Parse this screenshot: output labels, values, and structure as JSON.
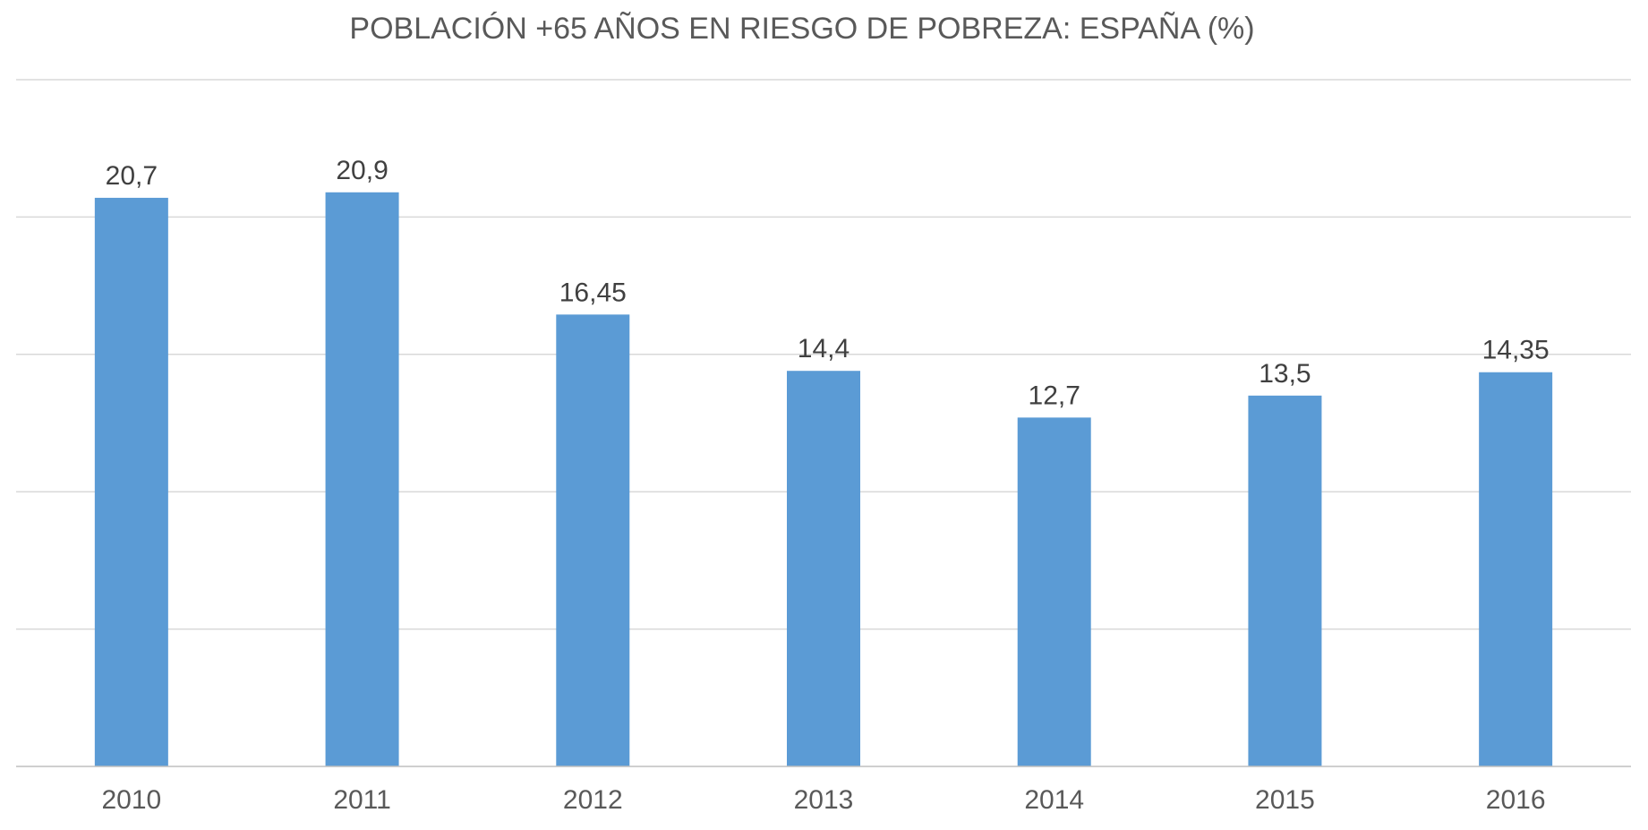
{
  "chart_data": {
    "type": "bar",
    "title": "POBLACIÓN +65 AÑOS EN RIESGO DE POBREZA: ESPAÑA (%)",
    "categories": [
      "2010",
      "2011",
      "2012",
      "2013",
      "2014",
      "2015",
      "2016"
    ],
    "values": [
      20.7,
      20.9,
      16.45,
      14.4,
      12.7,
      13.5,
      14.35
    ],
    "value_labels": [
      "20,7",
      "20,9",
      "16,45",
      "14,4",
      "12,7",
      "13,5",
      "14,35"
    ],
    "xlabel": "",
    "ylabel": "",
    "ylim": [
      0,
      25
    ],
    "gridline_step": 5,
    "y_tick_labels_visible": false,
    "grid": true,
    "legend": "none",
    "colors": {
      "bar": "#5b9bd5",
      "gridline": "#d9d9d9",
      "axis": "#bfbfbf",
      "title": "#595959",
      "label": "#404040"
    }
  }
}
